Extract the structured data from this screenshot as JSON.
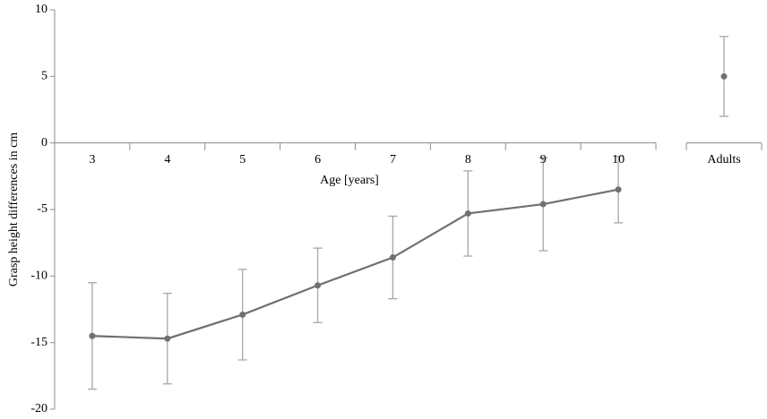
{
  "chart_data": {
    "type": "line",
    "y_label": "Grasp height differences in cm",
    "x_label": "Age [years]",
    "categories": [
      "3",
      "4",
      "5",
      "6",
      "7",
      "8",
      "9",
      "10"
    ],
    "values": [
      -14.5,
      -14.7,
      -12.9,
      -10.7,
      -8.6,
      -5.3,
      -4.6,
      -3.5
    ],
    "errors": [
      4.0,
      3.4,
      3.4,
      2.8,
      3.1,
      3.2,
      3.5,
      2.5
    ],
    "color": "#707070",
    "error_color": "#a6a6a6",
    "adults": {
      "label": "Adults",
      "value": 5,
      "error": 3
    },
    "ylim": [
      -20,
      10
    ],
    "yticks": [
      -20,
      -15,
      -10,
      -5,
      0,
      5,
      10
    ],
    "grid": false
  }
}
